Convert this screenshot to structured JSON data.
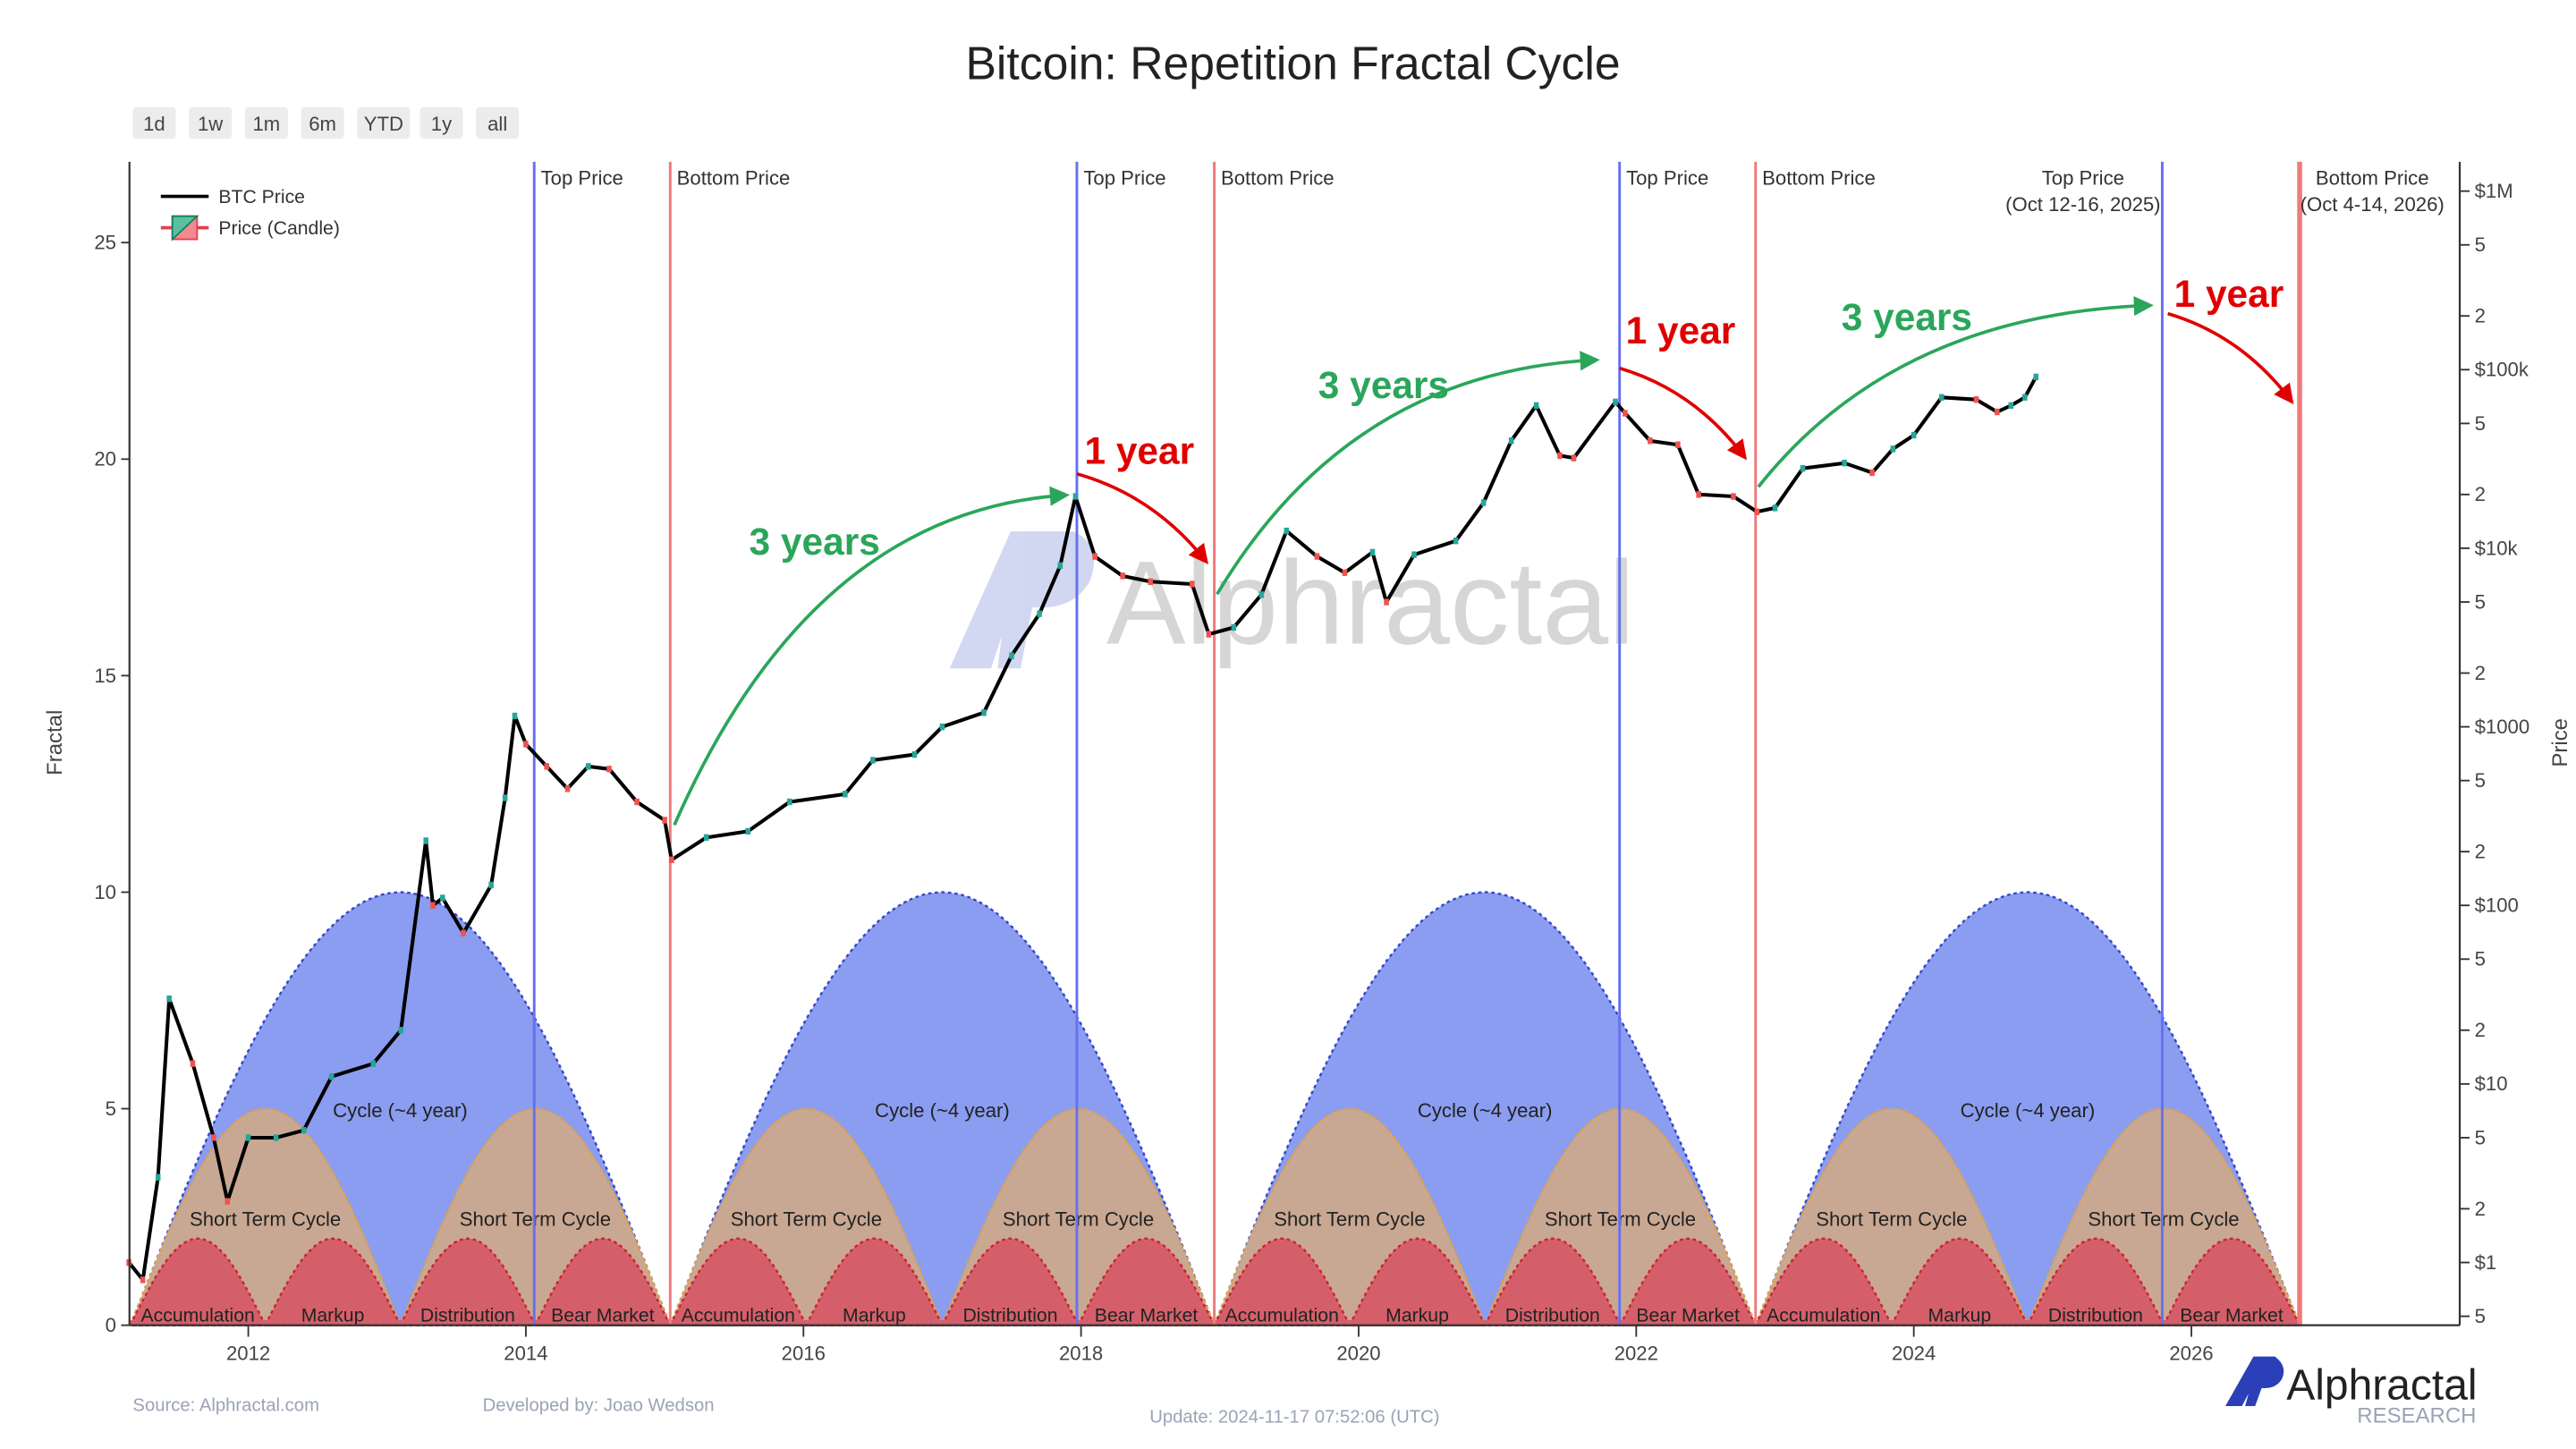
{
  "title": "Bitcoin: Repetition Fractal Cycle",
  "range_buttons": [
    "1d",
    "1w",
    "1m",
    "6m",
    "YTD",
    "1y",
    "all"
  ],
  "legend": [
    {
      "label": "BTC Price",
      "icon": "line-icon"
    },
    {
      "label": "Price (Candle)",
      "icon": "candle-icon"
    }
  ],
  "watermark": "Alphractal",
  "logo": {
    "name": "Alphractal",
    "sub": "RESEARCH"
  },
  "footer": {
    "source": "Source: Alphractal.com",
    "developer": "Developed by: Joao Wedson",
    "update": "Update: 2024-11-17 07:52:06 (UTC)"
  },
  "colors": {
    "cycle_fill": "#8a9df0",
    "cycle_border": "#3446c8",
    "short_fill": "#c9a893",
    "short_border": "#e0a040",
    "phase_fill": "#d45f6a",
    "phase_border": "#d0202a",
    "top_line": "#6670f0",
    "bottom_line": "#f07a7a",
    "green_annotation": "#2aa65a",
    "red_annotation": "#e00000",
    "price_line": "#000000"
  },
  "chart_data": {
    "type": "line",
    "title": "Bitcoin: Repetition Fractal Cycle",
    "grid": false,
    "legend_position": "top-left",
    "xaxis": {
      "ticks": [
        2012,
        2014,
        2016,
        2018,
        2020,
        2022,
        2024,
        2026
      ],
      "range": [
        2011.14,
        2027.93
      ]
    },
    "yaxis_left": {
      "label": "Fractal",
      "ticks": [
        0,
        5,
        10,
        15,
        20,
        25
      ],
      "range": [
        0,
        26.8
      ]
    },
    "yaxis_right": {
      "label": "Price",
      "scale": "log",
      "major_ticks": [
        {
          "value": 1,
          "label": "$1"
        },
        {
          "value": 10,
          "label": "$10"
        },
        {
          "value": 100,
          "label": "$100"
        },
        {
          "value": 1000,
          "label": "$1000"
        },
        {
          "value": 10000,
          "label": "$10k"
        },
        {
          "value": 100000,
          "label": "$100k"
        },
        {
          "value": 1000000,
          "label": "$1M"
        }
      ],
      "minor_ticks": [
        {
          "mult": 2,
          "label": "2"
        },
        {
          "mult": 5,
          "label": "5"
        }
      ]
    },
    "series": [
      {
        "name": "BTC Price",
        "points": [
          [
            2011.14,
            1.0
          ],
          [
            2011.24,
            0.8
          ],
          [
            2011.35,
            3
          ],
          [
            2011.43,
            30
          ],
          [
            2011.6,
            13
          ],
          [
            2011.75,
            5
          ],
          [
            2011.85,
            2.2
          ],
          [
            2012.0,
            5
          ],
          [
            2012.2,
            5
          ],
          [
            2012.4,
            5.5
          ],
          [
            2012.6,
            11
          ],
          [
            2012.9,
            13
          ],
          [
            2013.1,
            20
          ],
          [
            2013.28,
            230
          ],
          [
            2013.33,
            100
          ],
          [
            2013.4,
            110
          ],
          [
            2013.55,
            70
          ],
          [
            2013.75,
            130
          ],
          [
            2013.85,
            400
          ],
          [
            2013.92,
            1150
          ],
          [
            2014.0,
            800
          ],
          [
            2014.15,
            600
          ],
          [
            2014.3,
            450
          ],
          [
            2014.45,
            600
          ],
          [
            2014.6,
            580
          ],
          [
            2014.8,
            380
          ],
          [
            2015.0,
            300
          ],
          [
            2015.05,
            180
          ],
          [
            2015.3,
            240
          ],
          [
            2015.6,
            260
          ],
          [
            2015.9,
            380
          ],
          [
            2016.3,
            420
          ],
          [
            2016.5,
            650
          ],
          [
            2016.8,
            700
          ],
          [
            2017.0,
            1000
          ],
          [
            2017.3,
            1200
          ],
          [
            2017.5,
            2500
          ],
          [
            2017.7,
            4300
          ],
          [
            2017.85,
            8000
          ],
          [
            2017.96,
            19500
          ],
          [
            2018.1,
            9000
          ],
          [
            2018.3,
            7000
          ],
          [
            2018.5,
            6500
          ],
          [
            2018.8,
            6300
          ],
          [
            2018.92,
            3300
          ],
          [
            2019.1,
            3600
          ],
          [
            2019.3,
            5500
          ],
          [
            2019.48,
            12500
          ],
          [
            2019.7,
            9000
          ],
          [
            2019.9,
            7300
          ],
          [
            2020.1,
            9500
          ],
          [
            2020.2,
            5000
          ],
          [
            2020.4,
            9200
          ],
          [
            2020.7,
            11000
          ],
          [
            2020.9,
            18000
          ],
          [
            2021.1,
            40000
          ],
          [
            2021.28,
            63000
          ],
          [
            2021.45,
            33000
          ],
          [
            2021.55,
            32000
          ],
          [
            2021.85,
            66000
          ],
          [
            2021.92,
            57000
          ],
          [
            2022.1,
            40000
          ],
          [
            2022.3,
            38000
          ],
          [
            2022.45,
            20000
          ],
          [
            2022.7,
            19500
          ],
          [
            2022.87,
            16000
          ],
          [
            2023.0,
            16800
          ],
          [
            2023.2,
            28000
          ],
          [
            2023.5,
            30000
          ],
          [
            2023.7,
            26500
          ],
          [
            2023.85,
            36000
          ],
          [
            2024.0,
            43000
          ],
          [
            2024.2,
            70000
          ],
          [
            2024.45,
            68000
          ],
          [
            2024.6,
            58000
          ],
          [
            2024.7,
            63000
          ],
          [
            2024.8,
            70000
          ],
          [
            2024.88,
            91000
          ]
        ]
      }
    ],
    "cycles": [
      {
        "start": 2011.15,
        "end": 2015.04
      },
      {
        "start": 2015.04,
        "end": 2018.96
      },
      {
        "start": 2018.96,
        "end": 2022.86
      },
      {
        "start": 2022.86,
        "end": 2026.78
      }
    ],
    "cycle_peak": 10,
    "short_cycle_peak": 5,
    "phase_peak": 2,
    "cycle_label": "Cycle (~4 year)",
    "short_cycle_label": "Short Term Cycle",
    "phase_labels": [
      "Accumulation",
      "Markup",
      "Distribution",
      "Bear Market"
    ],
    "event_lines": [
      {
        "kind": "top",
        "date": 2014.06,
        "label": "Top Price"
      },
      {
        "kind": "bottom",
        "date": 2015.04,
        "label": "Bottom Price"
      },
      {
        "kind": "top",
        "date": 2017.97,
        "label": "Top Price"
      },
      {
        "kind": "bottom",
        "date": 2018.96,
        "label": "Bottom Price"
      },
      {
        "kind": "top",
        "date": 2021.88,
        "label": "Top Price"
      },
      {
        "kind": "bottom",
        "date": 2022.86,
        "label": "Bottom Price"
      },
      {
        "kind": "top",
        "date": 2025.79,
        "label": "Top Price",
        "sublabel": "(Oct 12-16, 2025)"
      },
      {
        "kind": "bottom",
        "date": 2026.78,
        "label": "Bottom Price",
        "sublabel": "(Oct 4-14, 2026)"
      }
    ],
    "annotations": [
      {
        "text": "3 years",
        "color": "green",
        "from": [
          2015.07,
          11.55
        ],
        "to": [
          2017.89,
          19.17
        ],
        "text_at": [
          2016.08,
          18.1
        ]
      },
      {
        "text": "1 year",
        "color": "red",
        "from": [
          2017.97,
          19.66
        ],
        "to": [
          2018.9,
          17.64
        ],
        "text_at": [
          2018.42,
          20.2
        ]
      },
      {
        "text": "3 years",
        "color": "green",
        "from": [
          2018.98,
          16.88
        ],
        "to": [
          2021.71,
          22.29
        ],
        "text_at": [
          2020.18,
          21.72
        ]
      },
      {
        "text": "1 year",
        "color": "red",
        "from": [
          2021.88,
          22.1
        ],
        "to": [
          2022.78,
          20.05
        ],
        "text_at": [
          2022.32,
          22.98
        ]
      },
      {
        "text": "3 years",
        "color": "green",
        "from": [
          2022.88,
          19.36
        ],
        "to": [
          2025.7,
          23.55
        ],
        "text_at": [
          2023.95,
          23.29
        ]
      },
      {
        "text": "1 year",
        "color": "red",
        "from": [
          2025.83,
          23.36
        ],
        "to": [
          2026.72,
          21.34
        ],
        "text_at": [
          2026.27,
          23.82
        ]
      }
    ]
  }
}
